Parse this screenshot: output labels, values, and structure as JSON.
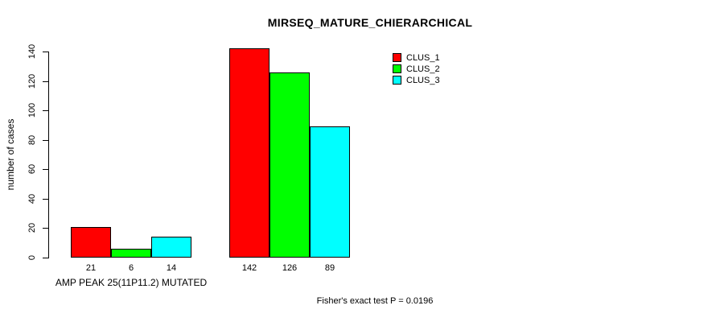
{
  "chart_data": {
    "type": "bar",
    "title": "MIRSEQ_MATURE_CHIERARCHICAL",
    "ylabel": "number of cases",
    "xlabel": "AMP PEAK 25(11P11.2) MUTATED",
    "footer": "Fisher's exact test P = 0.0196",
    "ylim": [
      0,
      140
    ],
    "yticks": [
      0,
      20,
      40,
      60,
      80,
      100,
      120,
      140
    ],
    "grid": false,
    "legend_position": "top-right",
    "group_count": 2,
    "series": [
      {
        "name": "CLUS_1",
        "color": "#ff0000",
        "values": [
          21,
          142
        ]
      },
      {
        "name": "CLUS_2",
        "color": "#00ff00",
        "values": [
          6,
          126
        ]
      },
      {
        "name": "CLUS_3",
        "color": "#00ffff",
        "values": [
          14,
          89
        ]
      }
    ],
    "show_bar_values": true,
    "axis_color": "#000000",
    "background_color": "#ffffff"
  }
}
